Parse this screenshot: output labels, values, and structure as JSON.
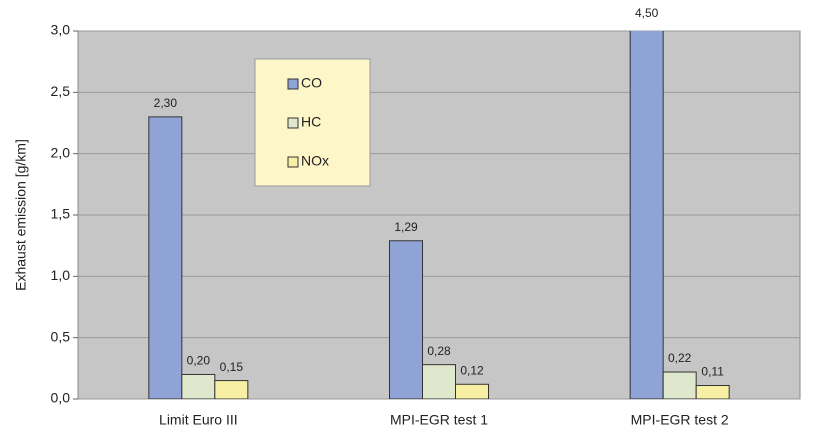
{
  "chart_data": {
    "type": "bar",
    "y_label": "Exhaust emission [g/km]",
    "categories": [
      "Limit Euro III",
      "MPI-EGR test 1",
      "MPI-EGR test 2"
    ],
    "series": [
      {
        "name": "CO",
        "color": "#8fa3d6",
        "values": [
          2.3,
          1.29,
          4.5
        ],
        "value_labels": [
          "2,30",
          "1,29",
          "4,50"
        ]
      },
      {
        "name": "HC",
        "color": "#dfe8cc",
        "values": [
          0.2,
          0.28,
          0.22
        ],
        "value_labels": [
          "0,20",
          "0,28",
          "0,22"
        ]
      },
      {
        "name": "NOx",
        "color": "#f7f0a4",
        "values": [
          0.15,
          0.12,
          0.11
        ],
        "value_labels": [
          "0,15",
          "0,12",
          "0,11"
        ]
      }
    ],
    "ylim": [
      0,
      3
    ],
    "yticks": [
      {
        "value": 0,
        "label": "0,0"
      },
      {
        "value": 0.5,
        "label": "0,5"
      },
      {
        "value": 1,
        "label": "1,0"
      },
      {
        "value": 1.5,
        "label": "1,5"
      },
      {
        "value": 2,
        "label": "2,0"
      },
      {
        "value": 2.5,
        "label": "2,5"
      },
      {
        "value": 3,
        "label": "3,0"
      }
    ],
    "grid": true
  }
}
